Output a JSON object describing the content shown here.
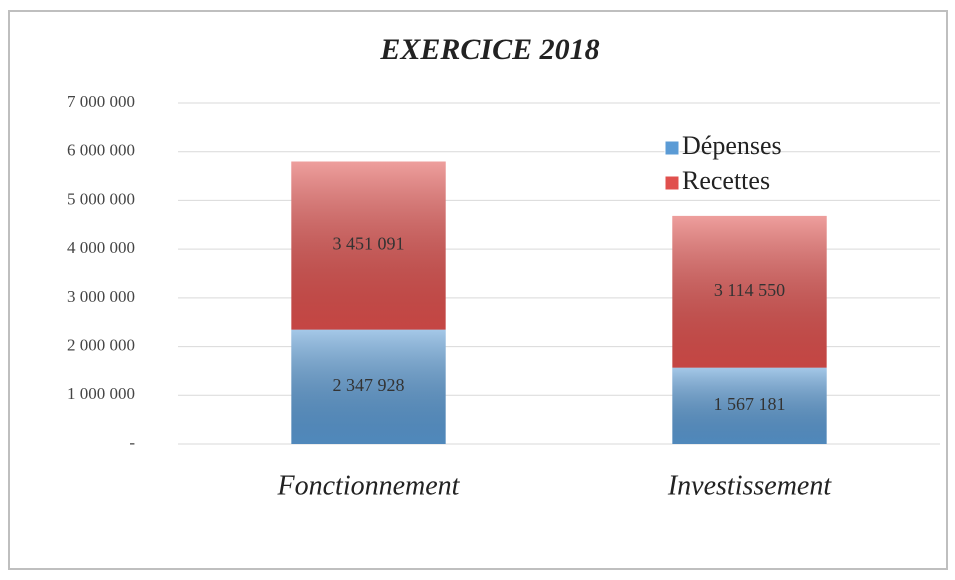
{
  "chart_data": {
    "type": "stacked_bar",
    "title": "EXERCICE 2018",
    "categories": [
      "Fonctionnement",
      "Investissement"
    ],
    "series": [
      {
        "name": "Dépenses",
        "color": "#5b9bd5",
        "values": [
          2347928,
          1567181
        ],
        "value_labels": [
          "2 347 928",
          "1 567 181"
        ]
      },
      {
        "name": "Recettes",
        "color": "#e0504d",
        "values": [
          3451091,
          3114550
        ],
        "value_labels": [
          "3 451 091",
          "3 114 550"
        ]
      }
    ],
    "ylim": [
      0,
      7000000
    ],
    "yticks": [
      {
        "value": 0,
        "label": "-"
      },
      {
        "value": 1000000,
        "label": "1 000 000"
      },
      {
        "value": 2000000,
        "label": "2 000 000"
      },
      {
        "value": 3000000,
        "label": "3 000 000"
      },
      {
        "value": 4000000,
        "label": "4 000 000"
      },
      {
        "value": 5000000,
        "label": "5 000 000"
      },
      {
        "value": 6000000,
        "label": "6 000 000"
      },
      {
        "value": 7000000,
        "label": "7 000 000"
      }
    ],
    "grid": true,
    "legend": "upper right"
  }
}
